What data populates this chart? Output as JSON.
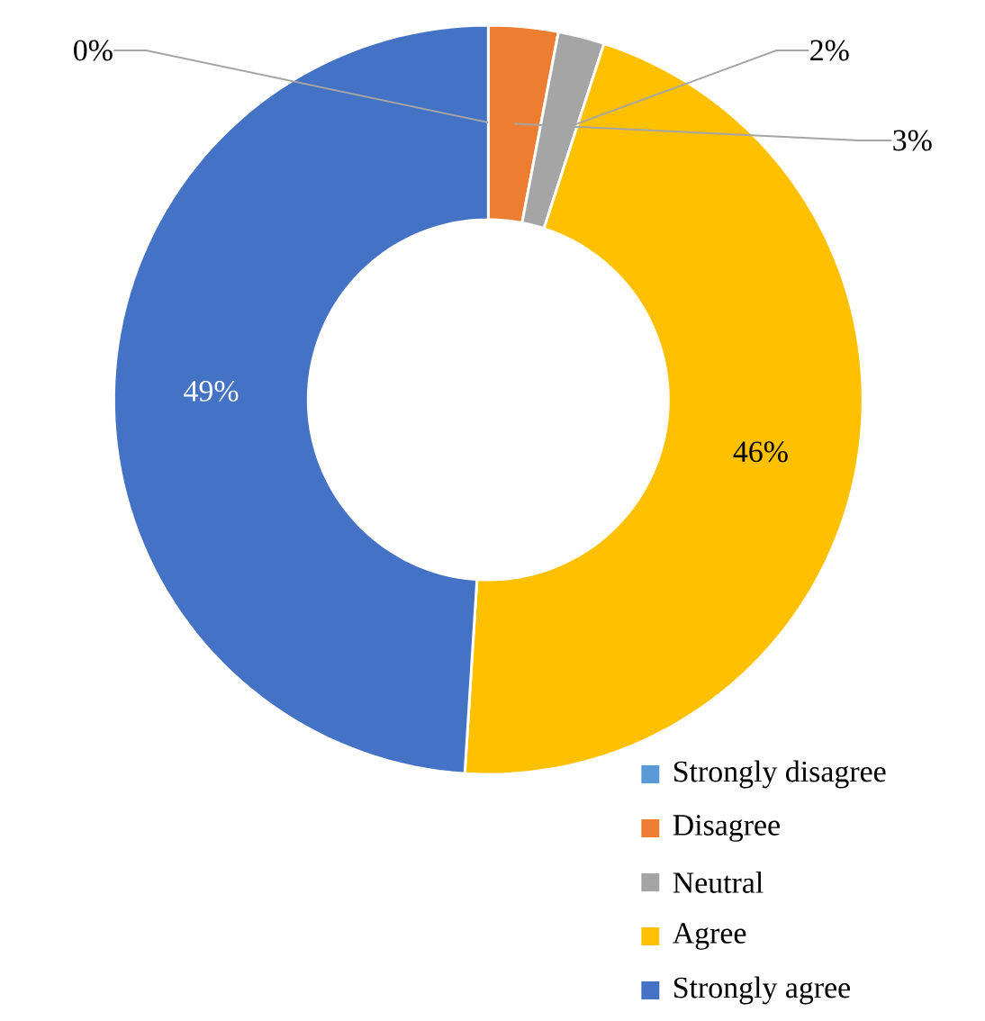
{
  "chart_data": {
    "type": "donut",
    "categories": [
      "Strongly disagree",
      "Disagree",
      "Neutral",
      "Agree",
      "Strongly agree"
    ],
    "values": [
      0,
      3,
      2,
      46,
      49
    ],
    "colors": [
      "#5b9bd5",
      "#ed7d31",
      "#a5a5a5",
      "#ffc000",
      "#4472c4"
    ],
    "value_labels": [
      "0%",
      "3%",
      "2%",
      "46%",
      "49%"
    ],
    "legend": "bottom right"
  }
}
